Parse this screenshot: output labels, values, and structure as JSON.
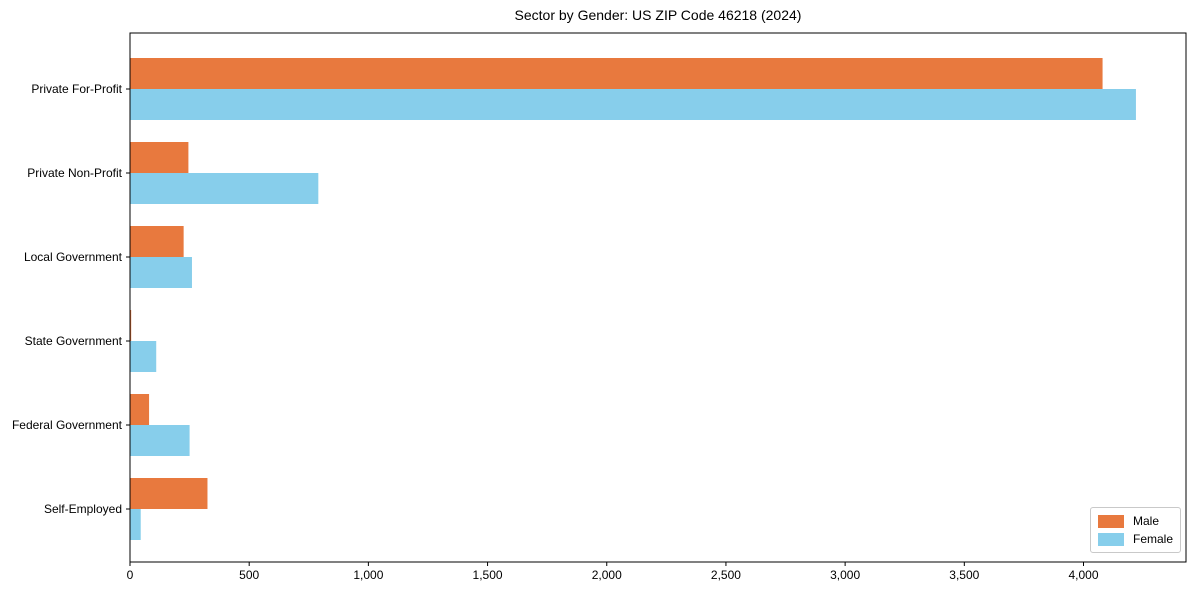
{
  "chart_data": {
    "type": "bar",
    "orientation": "horizontal",
    "title": "Sector by Gender: US ZIP Code 46218 (2024)",
    "categories": [
      "Private For-Profit",
      "Private Non-Profit",
      "Local Government",
      "State Government",
      "Federal Government",
      "Self-Employed"
    ],
    "series": [
      {
        "name": "Male",
        "color": "#e8793e",
        "values": [
          4080,
          245,
          225,
          5,
          80,
          325
        ]
      },
      {
        "name": "Female",
        "color": "#87ceeb",
        "values": [
          4220,
          790,
          260,
          110,
          250,
          45
        ]
      }
    ],
    "xlabel": "",
    "ylabel": "",
    "xlim": [
      0,
      4430
    ],
    "xticks": [
      0,
      500,
      1000,
      1500,
      2000,
      2500,
      3000,
      3500,
      4000
    ],
    "xtick_labels": [
      "0",
      "500",
      "1,000",
      "1,500",
      "2,000",
      "2,500",
      "3,000",
      "3,500",
      "4,000"
    ],
    "grid": false,
    "legend": {
      "position": "lower right",
      "entries": [
        "Male",
        "Female"
      ]
    }
  },
  "colors": {
    "male": "#e8793e",
    "female": "#87ceeb",
    "axis": "#000000",
    "background": "#ffffff",
    "legend_border": "#c9c9c9"
  }
}
